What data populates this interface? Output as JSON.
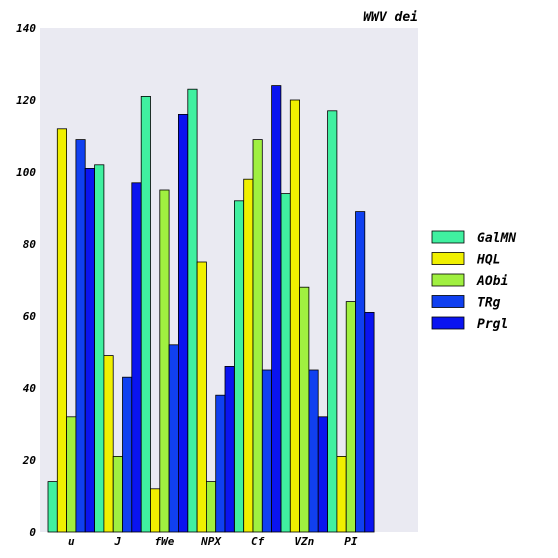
{
  "chart_data": {
    "type": "bar",
    "title": "WWV dei",
    "xlabel": "",
    "ylabel": "",
    "categories": [
      "u",
      "J",
      "fWe",
      "NPX",
      "Cf",
      "VZn",
      "PI"
    ],
    "ylim": [
      0,
      140
    ],
    "yticks": [
      0,
      20,
      40,
      60,
      80,
      100,
      120,
      140
    ],
    "grid": false,
    "legend_position": "right",
    "plot_background": "#eaeaf2",
    "series": [
      {
        "name": "GalMN",
        "color": "#40f0a0",
        "values": [
          14,
          102,
          121,
          123,
          92,
          94,
          117
        ]
      },
      {
        "name": "HQL",
        "color": "#f0f000",
        "values": [
          112,
          49,
          12,
          75,
          98,
          120,
          21
        ]
      },
      {
        "name": "AObi",
        "color": "#a0f040",
        "values": [
          32,
          21,
          95,
          14,
          109,
          68,
          64
        ]
      },
      {
        "name": "TRg",
        "color": "#1040f0",
        "values": [
          109,
          43,
          52,
          38,
          45,
          45,
          89
        ]
      },
      {
        "name": "Prgl",
        "color": "#0a14f0",
        "values": [
          101,
          97,
          116,
          46,
          124,
          32,
          61
        ]
      }
    ]
  }
}
